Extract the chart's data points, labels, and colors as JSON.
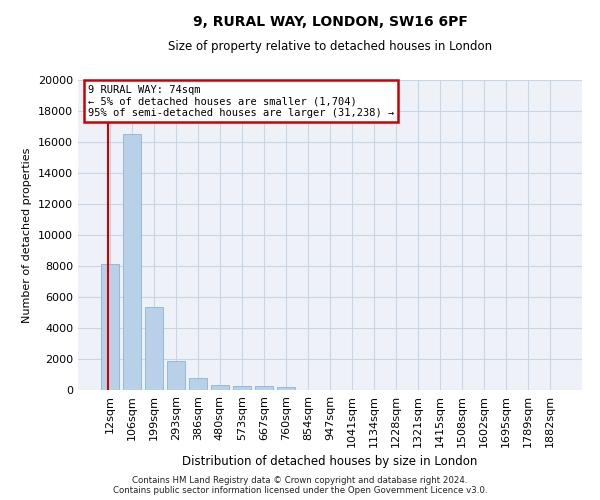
{
  "title": "9, RURAL WAY, LONDON, SW16 6PF",
  "subtitle": "Size of property relative to detached houses in London",
  "xlabel": "Distribution of detached houses by size in London",
  "ylabel": "Number of detached properties",
  "categories": [
    "12sqm",
    "106sqm",
    "199sqm",
    "293sqm",
    "386sqm",
    "480sqm",
    "573sqm",
    "667sqm",
    "760sqm",
    "854sqm",
    "947sqm",
    "1041sqm",
    "1134sqm",
    "1228sqm",
    "1321sqm",
    "1415sqm",
    "1508sqm",
    "1602sqm",
    "1695sqm",
    "1789sqm",
    "1882sqm"
  ],
  "values": [
    8100,
    16500,
    5350,
    1850,
    780,
    340,
    270,
    230,
    190,
    0,
    0,
    0,
    0,
    0,
    0,
    0,
    0,
    0,
    0,
    0,
    0
  ],
  "bar_color": "#b8d0e8",
  "bar_edge_color": "#8ab4d4",
  "grid_color": "#c8d4e8",
  "background_color": "#eef2f8",
  "annotation_box_color": "#ffffff",
  "annotation_border_color": "#cc0000",
  "vline_color": "#cc0000",
  "annotation_line1": "9 RURAL WAY: 74sqm",
  "annotation_line2": "← 5% of detached houses are smaller (1,704)",
  "annotation_line3": "95% of semi-detached houses are larger (31,238) →",
  "footer_line1": "Contains HM Land Registry data © Crown copyright and database right 2024.",
  "footer_line2": "Contains public sector information licensed under the Open Government Licence v3.0.",
  "ylim": [
    0,
    20000
  ],
  "yticks": [
    0,
    2000,
    4000,
    6000,
    8000,
    10000,
    12000,
    14000,
    16000,
    18000,
    20000
  ]
}
